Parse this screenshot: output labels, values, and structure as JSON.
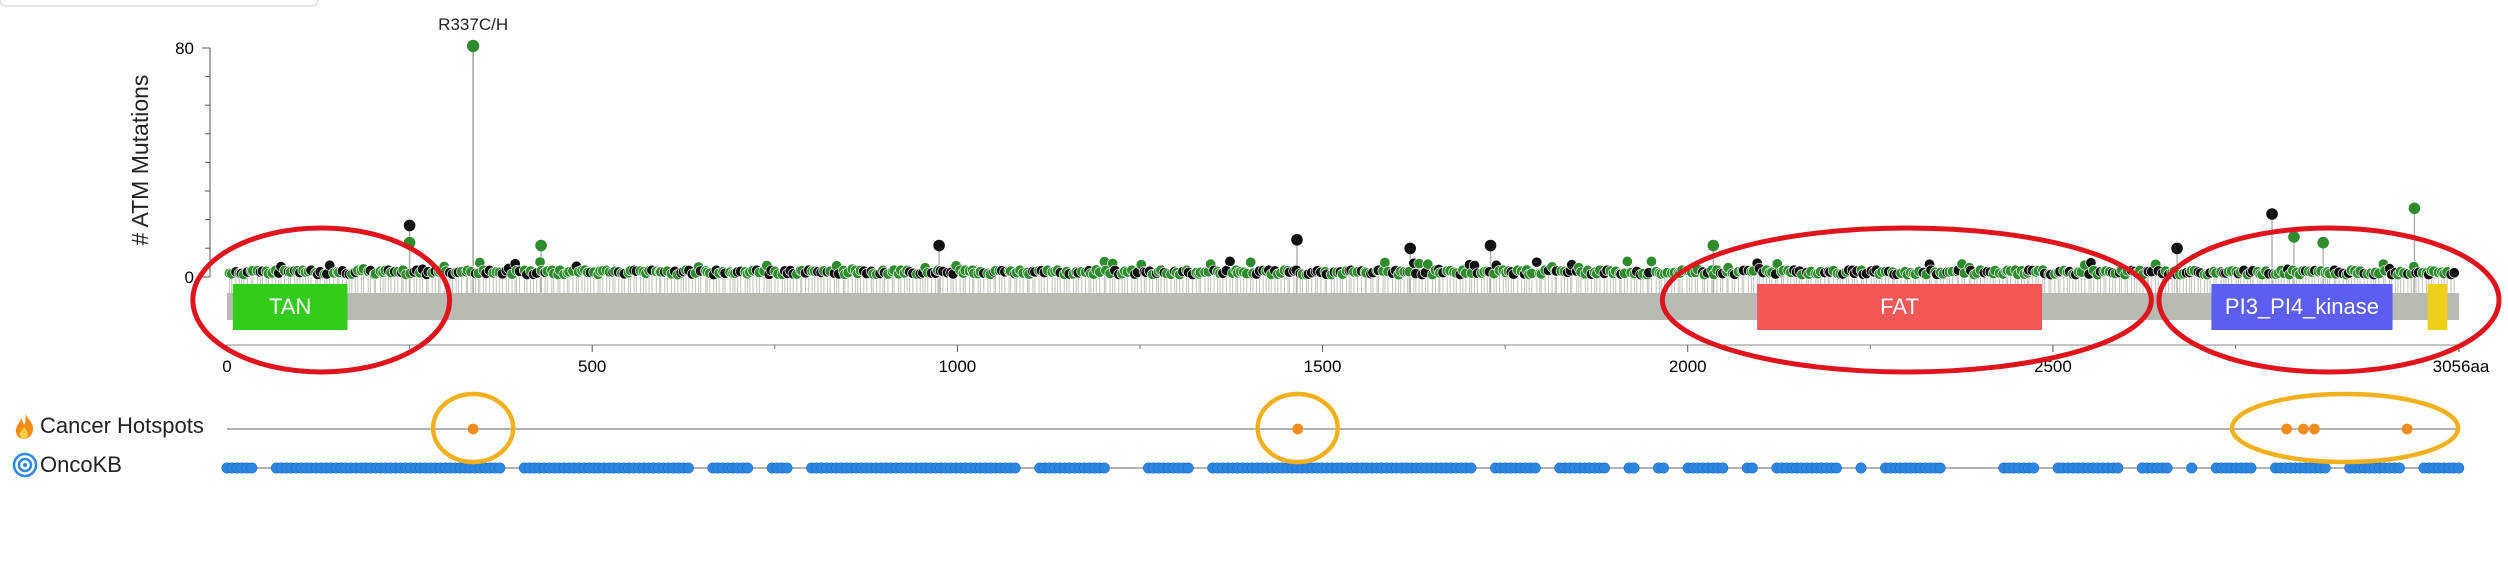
{
  "chart_data": {
    "type": "lollipop",
    "title": "",
    "xlabel": "",
    "ylabel": "# ATM Mutations",
    "xlim": [
      0,
      3056
    ],
    "ylim": [
      0,
      80
    ],
    "x_ticks": [
      0,
      500,
      1000,
      1500,
      2000,
      2500
    ],
    "x_end_label": "3056aa",
    "y_ticks": [
      0,
      80
    ],
    "hotspot_label": "R337C/H",
    "hotspot": {
      "position": 337,
      "count": 80,
      "color": "#2e8b2e"
    },
    "mutations_seed": 11,
    "mutation_colors": {
      "missense": "#2e8b2e",
      "truncating": "#111111"
    },
    "notable_peaks": [
      {
        "position": 250,
        "count": 18,
        "color": "#111111"
      },
      {
        "position": 250,
        "count": 12,
        "color": "#2e8b2e"
      },
      {
        "position": 430,
        "count": 11,
        "color": "#2e8b2e"
      },
      {
        "position": 975,
        "count": 11,
        "color": "#111111"
      },
      {
        "position": 1465,
        "count": 13,
        "color": "#111111"
      },
      {
        "position": 1620,
        "count": 10,
        "color": "#111111"
      },
      {
        "position": 1730,
        "count": 11,
        "color": "#111111"
      },
      {
        "position": 2035,
        "count": 11,
        "color": "#2e8b2e"
      },
      {
        "position": 2670,
        "count": 10,
        "color": "#111111"
      },
      {
        "position": 2800,
        "count": 22,
        "color": "#111111"
      },
      {
        "position": 2830,
        "count": 14,
        "color": "#2e8b2e"
      },
      {
        "position": 2870,
        "count": 12,
        "color": "#2e8b2e"
      },
      {
        "position": 2995,
        "count": 24,
        "color": "#2e8b2e"
      }
    ],
    "domains": [
      {
        "name": "TAN",
        "start": 8,
        "end": 165,
        "color": "#33cc1a"
      },
      {
        "name": "FAT",
        "start": 2095,
        "end": 2485,
        "color": "#f55656"
      },
      {
        "name": "PI3_PI4_kinase",
        "start": 2717,
        "end": 2965,
        "color": "#5b5ef0"
      },
      {
        "name": "",
        "start": 3013,
        "end": 3040,
        "color": "#eecf19"
      }
    ],
    "tracks": [
      {
        "name": "Cancer Hotspots",
        "icon": "flame-icon",
        "positions": [
          337,
          1466,
          2820,
          2843,
          2858,
          2985
        ],
        "color": "#f08c1e"
      },
      {
        "name": "OncoKB",
        "icon": "oncokb-target-icon",
        "color": "#2f86e0"
      }
    ],
    "annotations": [
      {
        "shape": "ellipse",
        "color": "#e0141c",
        "region": [
          8,
          250
        ]
      },
      {
        "shape": "ellipse",
        "color": "#e0141c",
        "region": [
          2020,
          2580
        ]
      },
      {
        "shape": "ellipse",
        "color": "#e0141c",
        "region": [
          2700,
          3056
        ]
      },
      {
        "shape": "ellipse",
        "color": "#f2b01e",
        "region": [
          337,
          337
        ]
      },
      {
        "shape": "ellipse",
        "color": "#f2b01e",
        "region": [
          1466,
          1466
        ]
      },
      {
        "shape": "ellipse",
        "color": "#f2b01e",
        "region": [
          2800,
          3000
        ]
      }
    ]
  }
}
